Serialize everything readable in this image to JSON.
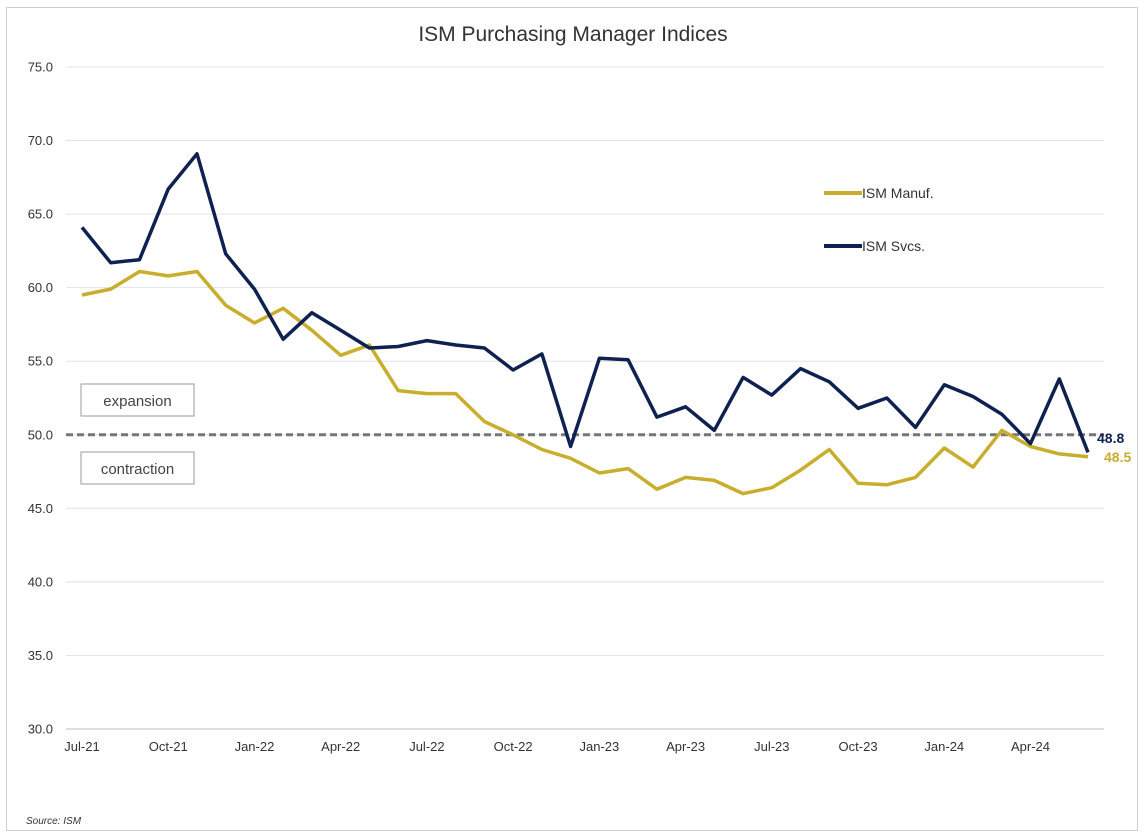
{
  "chart_data": {
    "type": "line",
    "title": "ISM Purchasing Manager Indices",
    "xlabel": "",
    "ylabel": "",
    "ylim": [
      30,
      75
    ],
    "yticks": [
      "75.0",
      "70.0",
      "65.0",
      "60.0",
      "55.0",
      "50.0",
      "45.0",
      "40.0",
      "35.0",
      "30.0"
    ],
    "ytick_values": [
      75,
      70,
      65,
      60,
      55,
      50,
      45,
      40,
      35,
      30
    ],
    "x": [
      "Jul-21",
      "Aug-21",
      "Sep-21",
      "Oct-21",
      "Nov-21",
      "Dec-21",
      "Jan-22",
      "Feb-22",
      "Mar-22",
      "Apr-22",
      "May-22",
      "Jun-22",
      "Jul-22",
      "Aug-22",
      "Sep-22",
      "Oct-22",
      "Nov-22",
      "Dec-22",
      "Jan-23",
      "Feb-23",
      "Mar-23",
      "Apr-23",
      "May-23",
      "Jun-23",
      "Jul-23",
      "Aug-23",
      "Sep-23",
      "Oct-23",
      "Nov-23",
      "Dec-23",
      "Jan-24",
      "Feb-24",
      "Mar-24",
      "Apr-24",
      "May-24",
      "Jun-24"
    ],
    "xtick_labels": [
      {
        "label": "Jul-21",
        "index": 0
      },
      {
        "label": "Oct-21",
        "index": 3
      },
      {
        "label": "Jan-22",
        "index": 6
      },
      {
        "label": "Apr-22",
        "index": 9
      },
      {
        "label": "Jul-22",
        "index": 12
      },
      {
        "label": "Oct-22",
        "index": 15
      },
      {
        "label": "Jan-23",
        "index": 18
      },
      {
        "label": "Apr-23",
        "index": 21
      },
      {
        "label": "Jul-23",
        "index": 24
      },
      {
        "label": "Oct-23",
        "index": 27
      },
      {
        "label": "Jan-24",
        "index": 30
      },
      {
        "label": "Apr-24",
        "index": 33
      }
    ],
    "series": [
      {
        "name": "ISM Manuf.",
        "color": "#c9ad2c",
        "values": [
          59.5,
          59.9,
          61.1,
          60.8,
          61.1,
          58.8,
          57.6,
          58.6,
          57.1,
          55.4,
          56.1,
          53.0,
          52.8,
          52.8,
          50.9,
          50.0,
          49.0,
          48.4,
          47.4,
          47.7,
          46.3,
          47.1,
          46.9,
          46.0,
          46.4,
          47.6,
          49.0,
          46.7,
          46.6,
          47.1,
          49.1,
          47.8,
          50.3,
          49.2,
          48.7,
          48.5
        ],
        "end_label": "48.5"
      },
      {
        "name": "ISM Svcs.",
        "color": "#0e2150",
        "values": [
          64.1,
          61.7,
          61.9,
          66.7,
          69.1,
          62.3,
          59.9,
          56.5,
          58.3,
          57.1,
          55.9,
          56.0,
          56.4,
          56.1,
          55.9,
          54.4,
          55.5,
          49.2,
          55.2,
          55.1,
          51.2,
          51.9,
          50.3,
          53.9,
          52.7,
          54.5,
          53.6,
          51.8,
          52.5,
          50.5,
          53.4,
          52.6,
          51.4,
          49.4,
          53.8,
          48.8
        ],
        "end_label": "48.8"
      }
    ],
    "reference_line": {
      "value": 50,
      "style": "dashed",
      "color": "#777777"
    },
    "zone_labels": {
      "expansion": "expansion",
      "contraction": "contraction"
    },
    "legend_position": "right",
    "grid": true
  },
  "source": "Source: ISM"
}
